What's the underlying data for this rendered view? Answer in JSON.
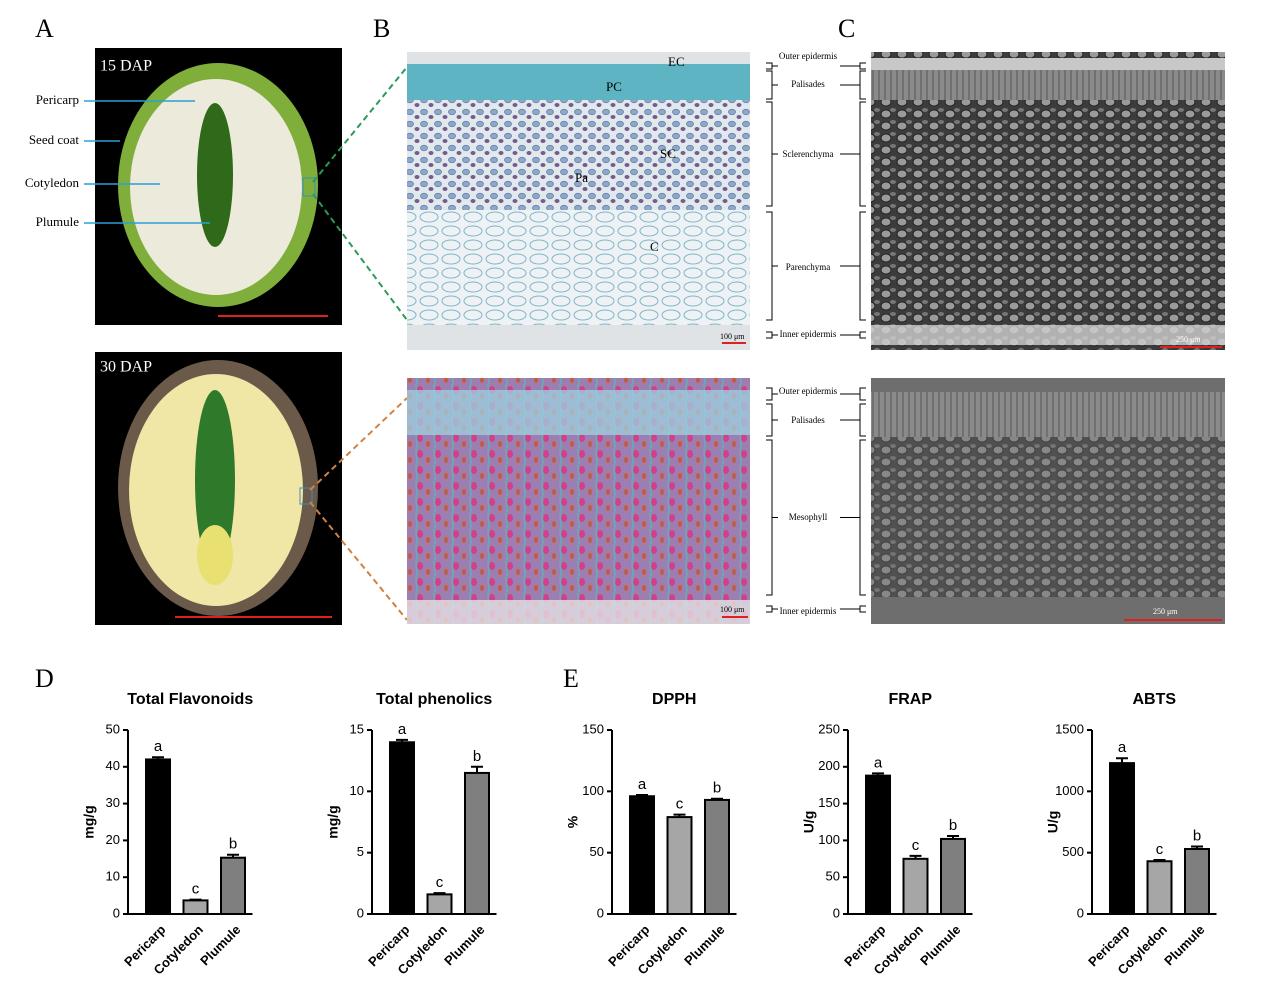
{
  "panel_letters": [
    "A",
    "B",
    "C",
    "D",
    "E"
  ],
  "panel_a": {
    "top_label": "15 DAP",
    "bottom_label": "30 DAP",
    "parts": [
      "Pericarp",
      "Seed coat",
      "Cotyledon",
      "Plumule"
    ]
  },
  "panel_b": {
    "cells": [
      "EC",
      "PC",
      "SC",
      "Pa",
      "C"
    ],
    "scale_top": "100 μm",
    "scale_bottom": "100 μm"
  },
  "panel_c": {
    "scale_top": "250 μm",
    "scale_bottom": "250 μm"
  },
  "layers_top": [
    "Outer epidermis",
    "Palisades",
    "Sclerenchyma",
    "Parenchyma",
    "Inner epidermis"
  ],
  "layers_bottom": [
    "Outer epidermis",
    "Palisades",
    "Mesophyll",
    "Inner epidermis"
  ],
  "chart_data": [
    {
      "type": "bar",
      "title": "Total Flavonoids",
      "y_label": "mg/g",
      "categories": [
        "Pericarp",
        "Cotyledon",
        "Plumule"
      ],
      "values": [
        42,
        3.7,
        15.3
      ],
      "errors": [
        0.6,
        0.2,
        0.8
      ],
      "annotations": [
        "a",
        "c",
        "b"
      ],
      "colors": [
        "#000000",
        "#a6a6a6",
        "#7f7f7f"
      ],
      "ylim": [
        0,
        50
      ],
      "yticks": [
        0,
        10,
        20,
        30,
        40,
        50
      ]
    },
    {
      "type": "bar",
      "title": "Total phenolics",
      "y_label": "mg/g",
      "categories": [
        "Pericarp",
        "Cotyledon",
        "Plumule"
      ],
      "values": [
        14,
        1.6,
        11.5
      ],
      "errors": [
        0.2,
        0.1,
        0.5
      ],
      "annotations": [
        "a",
        "c",
        "b"
      ],
      "colors": [
        "#000000",
        "#a6a6a6",
        "#7f7f7f"
      ],
      "ylim": [
        0,
        15
      ],
      "yticks": [
        0,
        5,
        10,
        15
      ]
    },
    {
      "type": "bar",
      "title": "DPPH",
      "y_label": "%",
      "categories": [
        "Pericarp",
        "Cotyledon",
        "Plumule"
      ],
      "values": [
        96,
        79,
        93
      ],
      "errors": [
        1,
        2,
        1
      ],
      "annotations": [
        "a",
        "c",
        "b"
      ],
      "colors": [
        "#000000",
        "#a6a6a6",
        "#7f7f7f"
      ],
      "ylim": [
        0,
        150
      ],
      "yticks": [
        0,
        50,
        100,
        150
      ]
    },
    {
      "type": "bar",
      "title": "FRAP",
      "y_label": "U/g",
      "categories": [
        "Pericarp",
        "Cotyledon",
        "Plumule"
      ],
      "values": [
        188,
        75,
        102
      ],
      "errors": [
        3,
        4,
        4
      ],
      "annotations": [
        "a",
        "c",
        "b"
      ],
      "colors": [
        "#000000",
        "#a6a6a6",
        "#7f7f7f"
      ],
      "ylim": [
        0,
        250
      ],
      "yticks": [
        0,
        50,
        100,
        150,
        200,
        250
      ]
    },
    {
      "type": "bar",
      "title": "ABTS",
      "y_label": "U/g",
      "categories": [
        "Pericarp",
        "Cotyledon",
        "Plumule"
      ],
      "values": [
        1230,
        430,
        530
      ],
      "errors": [
        40,
        10,
        20
      ],
      "annotations": [
        "a",
        "c",
        "b"
      ],
      "colors": [
        "#000000",
        "#a6a6a6",
        "#7f7f7f"
      ],
      "ylim": [
        0,
        1500
      ],
      "yticks": [
        0,
        500,
        1000,
        1500
      ]
    }
  ]
}
